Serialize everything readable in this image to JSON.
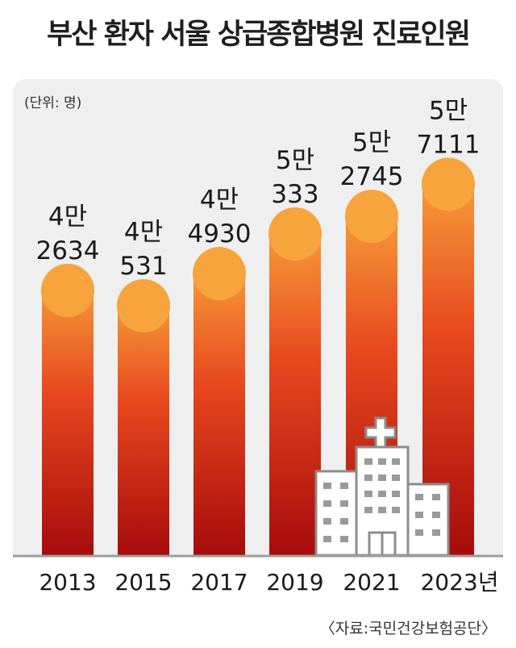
{
  "title": "부산 환자 서울 상급종합병원 진료인원",
  "unit_label": "(단위: 명)",
  "source": "〈자료:국민건강보험공단〉",
  "colors": {
    "bar_top": "#f7a43c",
    "bar_mid": "#e8491f",
    "bar_bottom": "#a60b0b",
    "panel": "#efefef",
    "baseline": "#9e9e9e"
  },
  "chart_data": {
    "type": "bar",
    "title": "부산 환자 서울 상급종합병원 진료인원",
    "xlabel": "",
    "ylabel": "",
    "categories": [
      "2013",
      "2015",
      "2017",
      "2019",
      "2021",
      "2023년"
    ],
    "values": [
      42634,
      40531,
      44930,
      50333,
      52745,
      57111
    ],
    "value_labels": [
      [
        "4만",
        "2634"
      ],
      [
        "4만",
        "531"
      ],
      [
        "4만",
        "4930"
      ],
      [
        "5만",
        "333"
      ],
      [
        "5만",
        "2745"
      ],
      [
        "5만",
        "7111"
      ]
    ],
    "grid": false,
    "legend": "none"
  }
}
